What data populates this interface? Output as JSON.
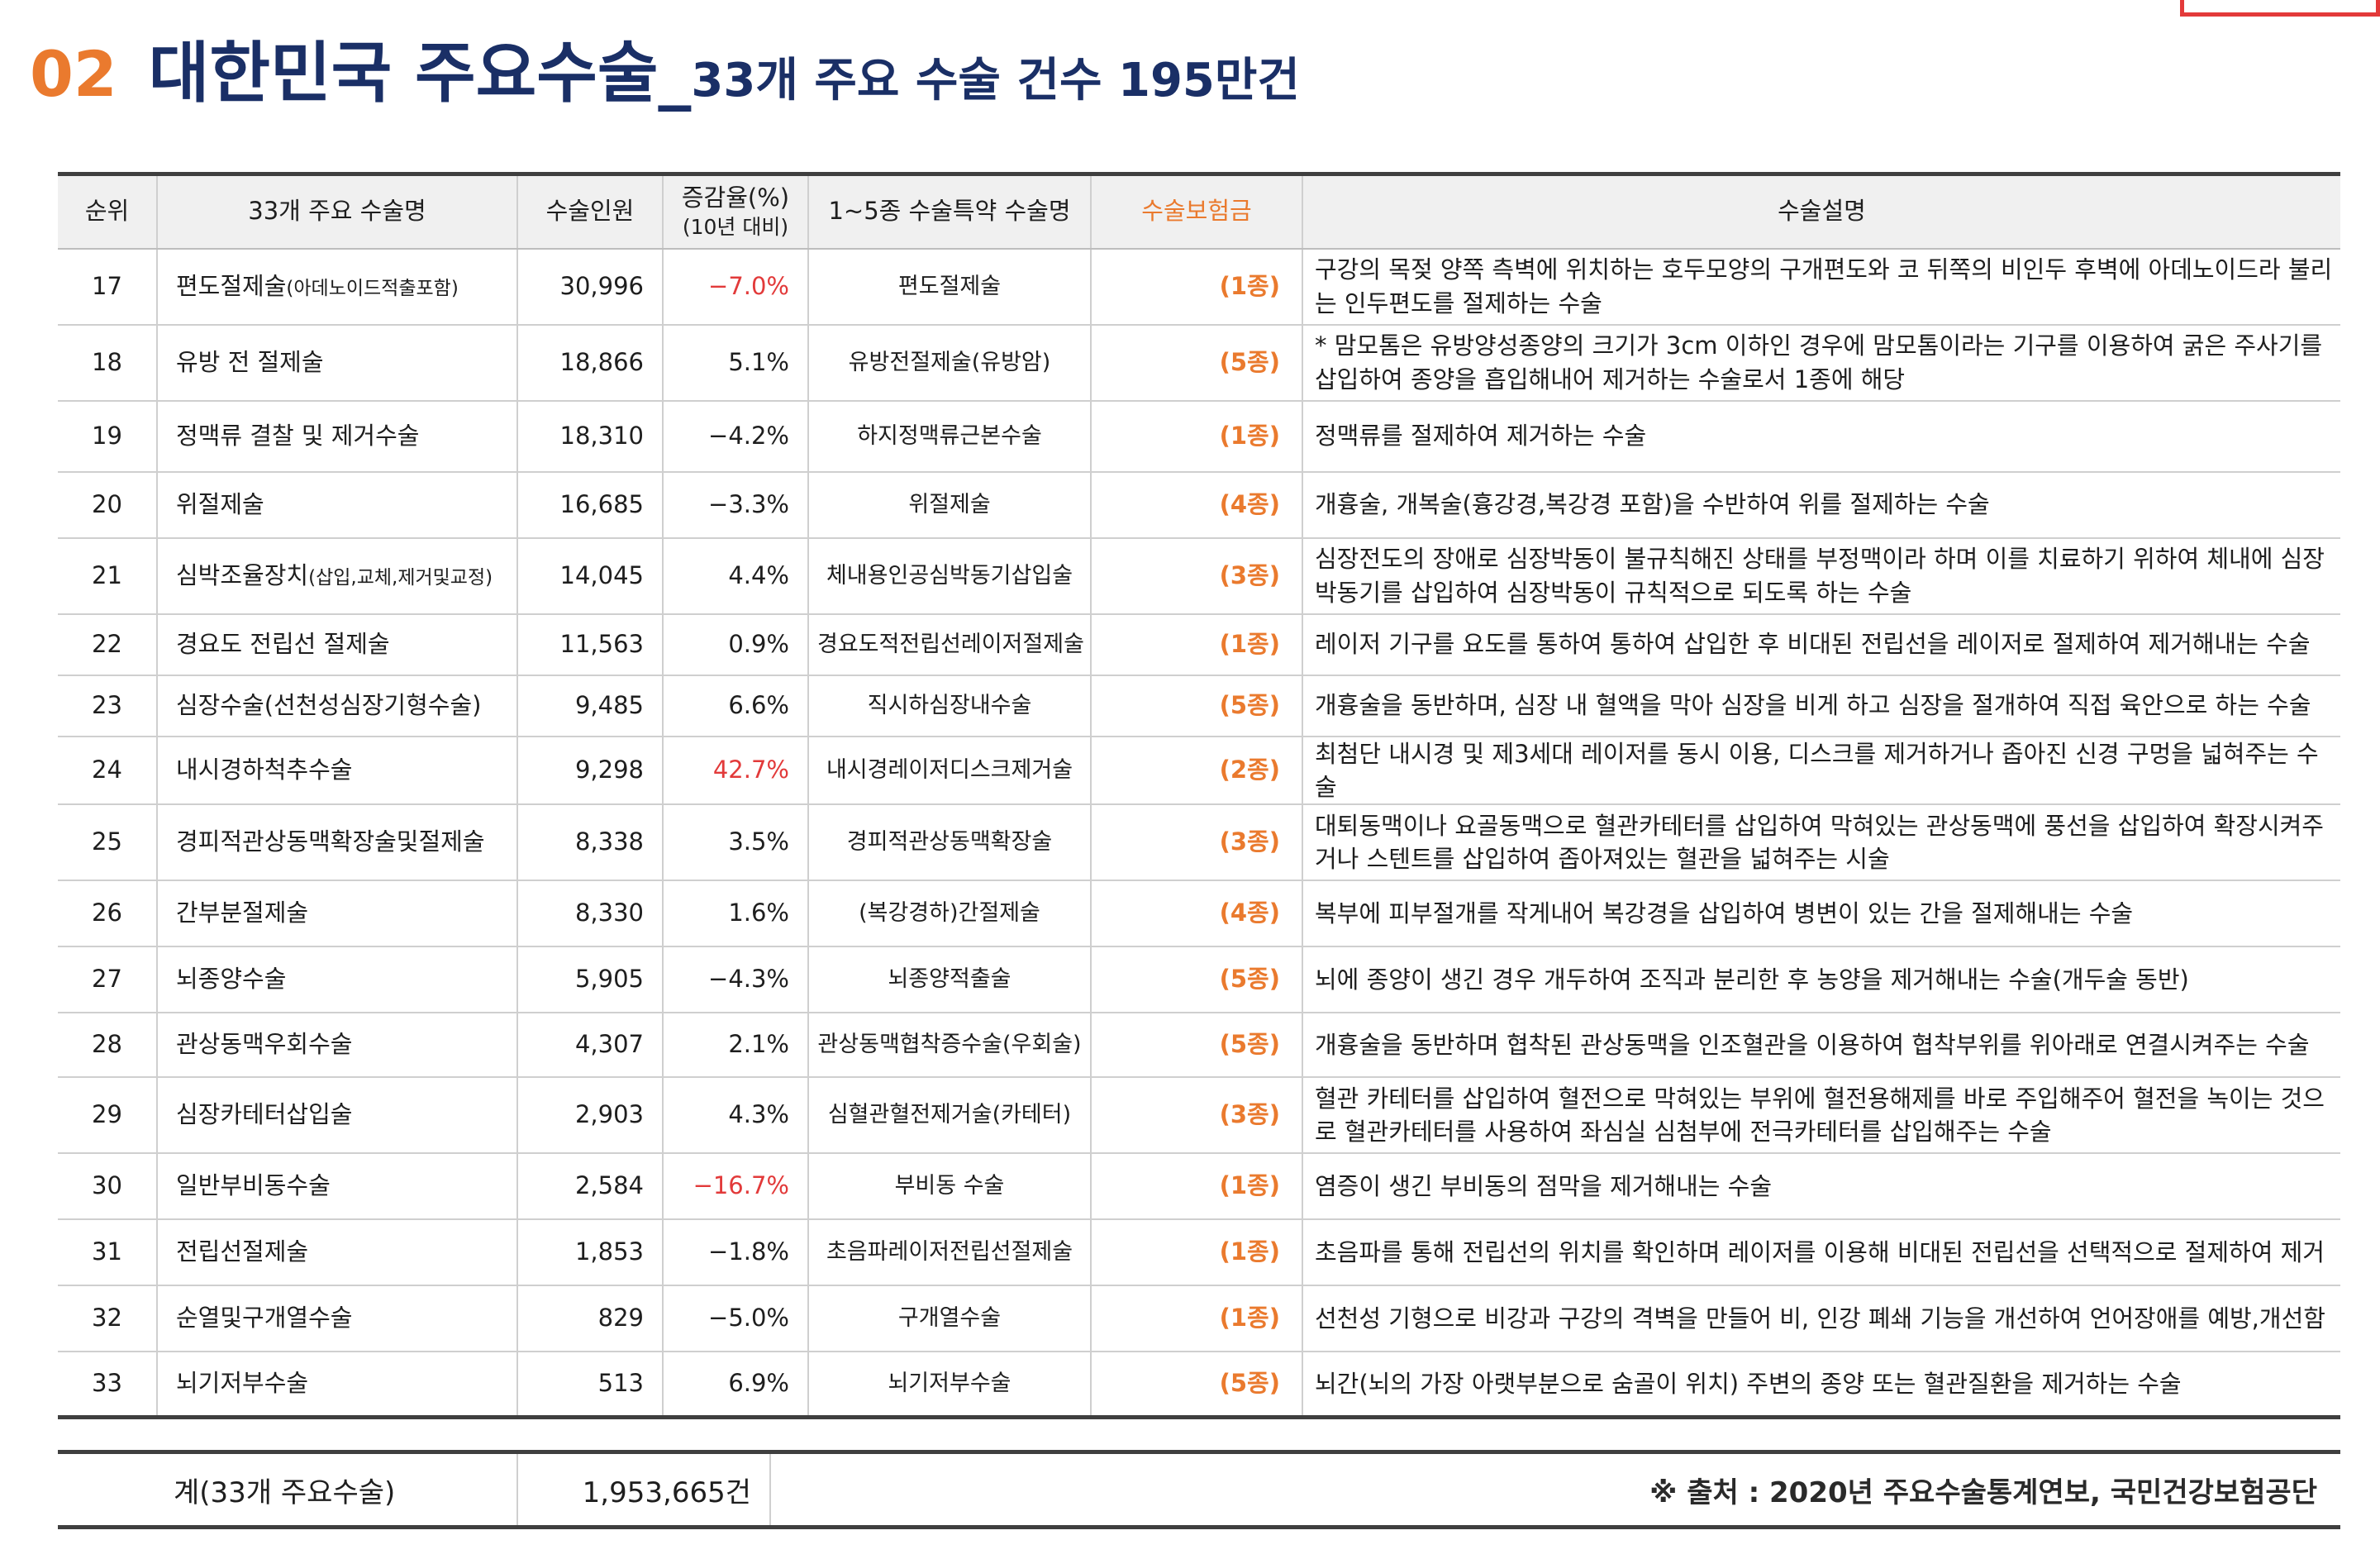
{
  "header": {
    "number": "02",
    "title": "대한민국 주요수술_",
    "subtitle": "33개 주요 수술 건수 195만건"
  },
  "table": {
    "columns": {
      "rank": "순위",
      "name": "33개 주요 수술명",
      "count": "수술인원",
      "rate_line1": "증감율(%)",
      "rate_line2": "(10년 대비)",
      "special": "1~5종 수술특약 수술명",
      "insurance": "수술보험금",
      "description": "수술설명"
    },
    "rows": [
      {
        "rank": "17",
        "name": "편도절제술",
        "name_note": "(아데노이드적출포함)",
        "count": "30,996",
        "rate": "−7.0%",
        "highlight": true,
        "special": "편도절제술",
        "insurance": "(1종)",
        "description": "구강의 목젖 양쪽 측벽에 위치하는 호두모양의 구개편도와 코 뒤쪽의 비인두 후벽에 아데노이드라 불리는 인두편도를 절제하는 수술"
      },
      {
        "rank": "18",
        "name": "유방 전 절제술",
        "name_note": "",
        "count": "18,866",
        "rate": "5.1%",
        "highlight": false,
        "special": "유방전절제술(유방암)",
        "insurance": "(5종)",
        "description": "* 맘모톰은 유방양성종양의 크기가 3cm 이하인 경우에 맘모톰이라는 기구를 이용하여 굵은 주사기를 삽입하여 종양을 흡입해내어 제거하는 수술로서 1종에 해당"
      },
      {
        "rank": "19",
        "name": "정맥류 결찰 및 제거수술",
        "name_note": "",
        "count": "18,310",
        "rate": "−4.2%",
        "highlight": false,
        "special": "하지정맥류근본수술",
        "insurance": "(1종)",
        "description": "정맥류를 절제하여 제거하는 수술"
      },
      {
        "rank": "20",
        "name": "위절제술",
        "name_note": "",
        "count": "16,685",
        "rate": "−3.3%",
        "highlight": false,
        "special": "위절제술",
        "insurance": "(4종)",
        "description": "개흉술, 개복술(흉강경,복강경 포함)을 수반하여 위를 절제하는 수술"
      },
      {
        "rank": "21",
        "name": "심박조율장치",
        "name_note": "(삽입,교체,제거및교정)",
        "count": "14,045",
        "rate": "4.4%",
        "highlight": false,
        "special": "체내용인공심박동기삽입술",
        "insurance": "(3종)",
        "description": "심장전도의 장애로 심장박동이 불규칙해진 상태를 부정맥이라 하며 이를 치료하기 위하여 체내에 심장박동기를 삽입하여 심장박동이 규칙적으로 되도록 하는 수술"
      },
      {
        "rank": "22",
        "name": "경요도 전립선 절제술",
        "name_note": "",
        "count": "11,563",
        "rate": "0.9%",
        "highlight": false,
        "special": "경요도적전립선레이저절제술",
        "insurance": "(1종)",
        "description": "레이저 기구를 요도를 통하여 통하여 삽입한 후 비대된 전립선을 레이저로 절제하여 제거해내는 수술"
      },
      {
        "rank": "23",
        "name": "심장수술(선천성심장기형수술)",
        "name_note": "",
        "count": "9,485",
        "rate": "6.6%",
        "highlight": false,
        "special": "직시하심장내수술",
        "insurance": "(5종)",
        "description": "개흉술을 동반하며, 심장 내 혈액을 막아 심장을 비게 하고 심장을 절개하여 직접 육안으로 하는 수술"
      },
      {
        "rank": "24",
        "name": "내시경하척추수술",
        "name_note": "",
        "count": "9,298",
        "rate": "42.7%",
        "highlight": true,
        "special": "내시경레이저디스크제거술",
        "insurance": "(2종)",
        "description": "최첨단 내시경 및 제3세대 레이저를 동시 이용, 디스크를 제거하거나 좁아진 신경 구멍을 넓혀주는 수술"
      },
      {
        "rank": "25",
        "name": "경피적관상동맥확장술및절제술",
        "name_note": "",
        "count": "8,338",
        "rate": "3.5%",
        "highlight": false,
        "special": "경피적관상동맥확장술",
        "insurance": "(3종)",
        "description": "대퇴동맥이나 요골동맥으로 혈관카테터를 삽입하여 막혀있는 관상동맥에 풍선을 삽입하여 확장시켜주거나 스텐트를 삽입하여 좁아져있는 혈관을 넓혀주는 시술"
      },
      {
        "rank": "26",
        "name": "간부분절제술",
        "name_note": "",
        "count": "8,330",
        "rate": "1.6%",
        "highlight": false,
        "special": "(복강경하)간절제술",
        "insurance": "(4종)",
        "description": "복부에 피부절개를 작게내어 복강경을 삽입하여 병변이 있는 간을 절제해내는 수술"
      },
      {
        "rank": "27",
        "name": "뇌종양수술",
        "name_note": "",
        "count": "5,905",
        "rate": "−4.3%",
        "highlight": false,
        "special": "뇌종양적출술",
        "insurance": "(5종)",
        "description": "뇌에 종양이 생긴 경우 개두하여 조직과 분리한 후 농양을 제거해내는 수술(개두술 동반)"
      },
      {
        "rank": "28",
        "name": "관상동맥우회수술",
        "name_note": "",
        "count": "4,307",
        "rate": "2.1%",
        "highlight": false,
        "special": "관상동맥협착증수술(우회술)",
        "insurance": "(5종)",
        "description": "개흉술을 동반하며 협착된 관상동맥을 인조혈관을 이용하여 협착부위를 위아래로 연결시켜주는 수술"
      },
      {
        "rank": "29",
        "name": "심장카테터삽입술",
        "name_note": "",
        "count": "2,903",
        "rate": "4.3%",
        "highlight": false,
        "special": "심혈관혈전제거술(카테터)",
        "insurance": "(3종)",
        "description": "혈관 카테터를 삽입하여 혈전으로 막혀있는 부위에 혈전용해제를 바로 주입해주어 혈전을 녹이는 것으로 혈관카테터를 사용하여 좌심실 심첨부에 전극카테터를 삽입해주는 수술"
      },
      {
        "rank": "30",
        "name": "일반부비동수술",
        "name_note": "",
        "count": "2,584",
        "rate": "−16.7%",
        "highlight": true,
        "special": "부비동 수술",
        "insurance": "(1종)",
        "description": "염증이 생긴 부비동의 점막을 제거해내는 수술"
      },
      {
        "rank": "31",
        "name": "전립선절제술",
        "name_note": "",
        "count": "1,853",
        "rate": "−1.8%",
        "highlight": false,
        "special": "초음파레이저전립선절제술",
        "insurance": "(1종)",
        "description": "초음파를 통해 전립선의 위치를 확인하며 레이저를 이용해 비대된 전립선을 선택적으로 절제하여 제거"
      },
      {
        "rank": "32",
        "name": "순열및구개열수술",
        "name_note": "",
        "count": "829",
        "rate": "−5.0%",
        "highlight": false,
        "special": "구개열수술",
        "insurance": "(1종)",
        "description": "선천성 기형으로 비강과 구강의 격벽을 만들어 비, 인강 폐쇄 기능을 개선하여 언어장애를 예방,개선함"
      },
      {
        "rank": "33",
        "name": "뇌기저부수술",
        "name_note": "",
        "count": "513",
        "rate": "6.9%",
        "highlight": false,
        "special": "뇌기저부수술",
        "insurance": "(5종)",
        "description": "뇌간(뇌의 가장 아랫부분으로 숨골이 위치) 주변의 종양 또는 혈관질환을 제거하는 수술"
      }
    ]
  },
  "total": {
    "label": "계(33개 주요수술)",
    "value": "1,953,665건",
    "source": "※ 출처 : 2020년 주요수술통계연보, 국민건강보험공단"
  }
}
